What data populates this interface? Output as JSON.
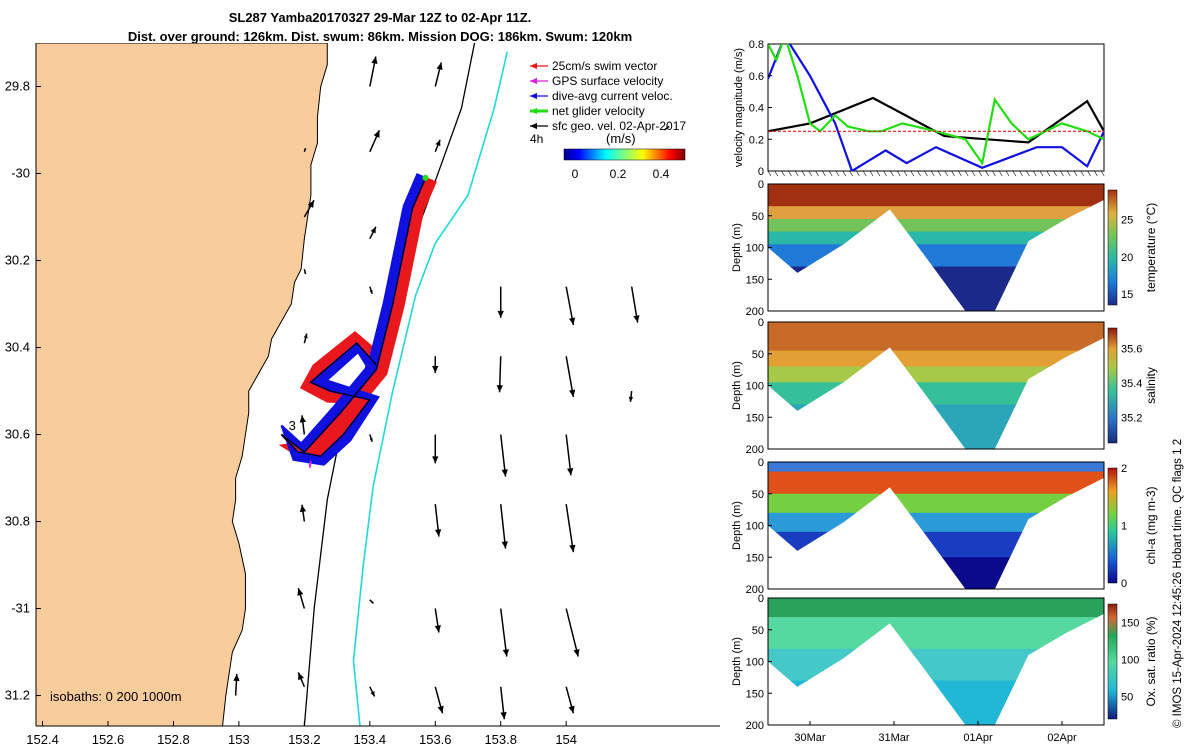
{
  "header": {
    "line1": "SL287 Yamba20170327 29-Mar 12Z to 02-Apr 11Z.",
    "line2": "Dist. over ground: 126km. Dist. swum: 86km. Mission DOG: 186km. Swum: 120km"
  },
  "credit": "© IMOS 15-Apr-2024 12:45:26 Hobart time. QC flags 1  2",
  "colors": {
    "land": "#f9cc9c",
    "swim_vector": "#e8181c",
    "gps_velocity": "#d81ed8",
    "dive_avg": "#1010e0",
    "net_velocity": "#22dd11",
    "sfc_geo": "#000000",
    "isobath_200": "#000000",
    "isobath_1000": "#22d8d8"
  },
  "chart_data": [
    {
      "type": "scatter",
      "name": "map",
      "xlim": [
        152.38,
        154.47
      ],
      "ylim": [
        -31.27,
        -29.7
      ],
      "x_ticks": [
        152.4,
        152.6,
        152.8,
        153,
        153.2,
        153.4,
        153.6,
        153.8,
        154
      ],
      "y_ticks": [
        -29.8,
        -30,
        -30.2,
        -30.4,
        -30.6,
        -30.8,
        -31,
        -31.2
      ],
      "y_tick_labels": [
        "29.8",
        "-30",
        "30.2",
        "30.4",
        "30.6",
        "30.8",
        "-31",
        "31.2"
      ],
      "legend": {
        "placement": "top-right",
        "entries": [
          "25cm/s swim vector",
          "GPS surface velocity",
          "dive-avg current veloc.",
          "net glider velocity",
          "sfc geo. vel. 02-Apr-2017"
        ],
        "time_label": "4h",
        "colorbar_title": "(m/s)",
        "colorbar_ticks": [
          "0",
          "0.2",
          "0.4"
        ]
      },
      "isobaths_label": "isobaths: 0   200  1000m",
      "waypoint_label": "3",
      "coastline": [
        [
          152.38,
          -29.7
        ],
        [
          153.27,
          -29.7
        ],
        [
          153.27,
          -29.75
        ],
        [
          153.25,
          -29.8
        ],
        [
          153.24,
          -29.87
        ],
        [
          153.24,
          -29.93
        ],
        [
          153.22,
          -29.98
        ],
        [
          153.22,
          -30.05
        ],
        [
          153.21,
          -30.1
        ],
        [
          153.2,
          -30.15
        ],
        [
          153.19,
          -30.22
        ],
        [
          153.17,
          -30.25
        ],
        [
          153.16,
          -30.3
        ],
        [
          153.13,
          -30.34
        ],
        [
          153.1,
          -30.38
        ],
        [
          153.09,
          -30.42
        ],
        [
          153.06,
          -30.46
        ],
        [
          153.03,
          -30.5
        ],
        [
          153.03,
          -30.55
        ],
        [
          153.02,
          -30.6
        ],
        [
          153.01,
          -30.65
        ],
        [
          152.99,
          -30.7
        ],
        [
          152.99,
          -30.75
        ],
        [
          152.98,
          -30.8
        ],
        [
          153,
          -30.85
        ],
        [
          153.02,
          -30.92
        ],
        [
          153.02,
          -31
        ],
        [
          153.01,
          -31.05
        ],
        [
          152.98,
          -31.1
        ],
        [
          152.97,
          -31.15
        ],
        [
          152.96,
          -31.2
        ],
        [
          152.95,
          -31.27
        ],
        [
          152.38,
          -31.27
        ]
      ],
      "isobath_200": [
        [
          153.2,
          -31.27
        ],
        [
          153.23,
          -31.0
        ],
        [
          153.27,
          -30.75
        ],
        [
          153.31,
          -30.6
        ],
        [
          153.36,
          -30.5
        ],
        [
          153.46,
          -30.3
        ],
        [
          153.57,
          -30.08
        ],
        [
          153.68,
          -29.85
        ],
        [
          153.72,
          -29.7
        ]
      ],
      "isobath_1000": [
        [
          153.37,
          -31.27
        ],
        [
          153.35,
          -31.12
        ],
        [
          153.38,
          -30.9
        ],
        [
          153.41,
          -30.72
        ],
        [
          153.47,
          -30.5
        ],
        [
          153.54,
          -30.28
        ],
        [
          153.6,
          -30.16
        ],
        [
          153.7,
          -30.05
        ],
        [
          153.78,
          -29.85
        ],
        [
          153.82,
          -29.72
        ]
      ],
      "sfc_vectors": [
        {
          "lon": 153.4,
          "lat": -29.8,
          "u": 0.05,
          "v": 0.25
        },
        {
          "lon": 153.6,
          "lat": -29.8,
          "u": 0.05,
          "v": 0.2
        },
        {
          "lon": 154.3,
          "lat": -29.9,
          "u": 0.04,
          "v": 0.03
        },
        {
          "lon": 153.2,
          "lat": -29.95,
          "u": 0.01,
          "v": 0.03
        },
        {
          "lon": 153.4,
          "lat": -29.95,
          "u": 0.08,
          "v": 0.18
        },
        {
          "lon": 153.6,
          "lat": -29.95,
          "u": 0.04,
          "v": 0.1
        },
        {
          "lon": 153.2,
          "lat": -30.1,
          "u": 0.08,
          "v": 0.14
        },
        {
          "lon": 153.4,
          "lat": -30.15,
          "u": 0.05,
          "v": 0.1
        },
        {
          "lon": 153.2,
          "lat": -30.22,
          "u": 0.01,
          "v": -0.04
        },
        {
          "lon": 153.4,
          "lat": -30.26,
          "u": 0.02,
          "v": -0.06
        },
        {
          "lon": 153.8,
          "lat": -30.26,
          "u": 0.0,
          "v": -0.26
        },
        {
          "lon": 154.0,
          "lat": -30.26,
          "u": 0.06,
          "v": -0.32
        },
        {
          "lon": 154.2,
          "lat": -30.26,
          "u": 0.05,
          "v": -0.3
        },
        {
          "lon": 153.2,
          "lat": -30.39,
          "u": 0.02,
          "v": 0.08
        },
        {
          "lon": 153.6,
          "lat": -30.42,
          "u": 0.0,
          "v": -0.14
        },
        {
          "lon": 153.8,
          "lat": -30.42,
          "u": -0.01,
          "v": -0.3
        },
        {
          "lon": 154.0,
          "lat": -30.42,
          "u": 0.06,
          "v": -0.34
        },
        {
          "lon": 154.2,
          "lat": -30.5,
          "u": -0.01,
          "v": -0.09
        },
        {
          "lon": 153.2,
          "lat": -30.6,
          "u": -0.02,
          "v": 0.16
        },
        {
          "lon": 153.4,
          "lat": -30.6,
          "u": 0.02,
          "v": -0.06
        },
        {
          "lon": 153.6,
          "lat": -30.6,
          "u": 0.0,
          "v": -0.24
        },
        {
          "lon": 153.8,
          "lat": -30.6,
          "u": 0.04,
          "v": -0.35
        },
        {
          "lon": 154.0,
          "lat": -30.6,
          "u": 0.04,
          "v": -0.34
        },
        {
          "lon": 153.2,
          "lat": -30.8,
          "u": -0.02,
          "v": 0.14
        },
        {
          "lon": 153.6,
          "lat": -30.76,
          "u": 0.03,
          "v": -0.27
        },
        {
          "lon": 153.8,
          "lat": -30.76,
          "u": 0.04,
          "v": -0.37
        },
        {
          "lon": 154.0,
          "lat": -30.76,
          "u": 0.06,
          "v": -0.4
        },
        {
          "lon": 153.2,
          "lat": -31.0,
          "u": -0.05,
          "v": 0.17
        },
        {
          "lon": 153.4,
          "lat": -30.98,
          "u": 0.03,
          "v": -0.03
        },
        {
          "lon": 153.6,
          "lat": -31.0,
          "u": 0.03,
          "v": -0.2
        },
        {
          "lon": 153.8,
          "lat": -31.0,
          "u": 0.05,
          "v": -0.4
        },
        {
          "lon": 154.0,
          "lat": -31.0,
          "u": 0.1,
          "v": -0.4
        },
        {
          "lon": 152.99,
          "lat": -31.2,
          "u": 0.01,
          "v": 0.18
        },
        {
          "lon": 153.2,
          "lat": -31.18,
          "u": -0.05,
          "v": 0.12
        },
        {
          "lon": 153.4,
          "lat": -31.18,
          "u": 0.04,
          "v": -0.08
        },
        {
          "lon": 153.6,
          "lat": -31.18,
          "u": 0.06,
          "v": -0.22
        },
        {
          "lon": 153.8,
          "lat": -31.18,
          "u": 0.03,
          "v": -0.27
        },
        {
          "lon": 154.0,
          "lat": -31.18,
          "u": 0.06,
          "v": -0.22
        }
      ],
      "track": [
        [
          153.42,
          -30.44
        ],
        [
          153.36,
          -30.39
        ],
        [
          153.25,
          -30.46
        ],
        [
          153.22,
          -30.48
        ],
        [
          153.28,
          -30.5
        ],
        [
          153.4,
          -30.52
        ],
        [
          153.32,
          -30.6
        ],
        [
          153.25,
          -30.65
        ],
        [
          153.18,
          -30.64
        ],
        [
          153.13,
          -30.6
        ],
        [
          153.2,
          -30.64
        ],
        [
          153.31,
          -30.55
        ],
        [
          153.42,
          -30.45
        ],
        [
          153.47,
          -30.3
        ],
        [
          153.53,
          -30.08
        ],
        [
          153.57,
          -30.01
        ]
      ],
      "gps_arrow": {
        "lon": 153.22,
        "lat": -30.66,
        "u": -0.01,
        "v": -0.06
      }
    },
    {
      "type": "line",
      "name": "velocity",
      "ylabel": "velocity magnitude (m/s)",
      "ylim": [
        0,
        0.8
      ],
      "y_ticks": [
        0,
        0.2,
        0.4,
        0.6,
        0.8
      ],
      "xlim": [
        0,
        4
      ],
      "series": [
        {
          "color": "#000000",
          "x": [
            0,
            0.5,
            1.25,
            2.1,
            3.1,
            3.8,
            4.0
          ],
          "values": [
            0.25,
            0.3,
            0.46,
            0.22,
            0.18,
            0.44,
            0.25
          ]
        },
        {
          "color": "#1010e0",
          "x": [
            0,
            0.2,
            0.5,
            0.68,
            0.8,
            1.0,
            1.4,
            1.65,
            2.0,
            2.55,
            2.85,
            3.2,
            3.5,
            3.8,
            4.0
          ],
          "values": [
            0.58,
            0.85,
            0.6,
            0.42,
            0.3,
            0.0,
            0.13,
            0.05,
            0.15,
            0.02,
            0.08,
            0.15,
            0.15,
            0.03,
            0.25
          ]
        },
        {
          "color": "#22dd11",
          "x": [
            0,
            0.1,
            0.2,
            0.35,
            0.5,
            0.62,
            0.8,
            0.95,
            1.2,
            1.35,
            1.6,
            2.0,
            2.35,
            2.55,
            2.7,
            2.9,
            3.1,
            3.5,
            3.8,
            4.0
          ],
          "values": [
            0.8,
            0.7,
            0.85,
            0.6,
            0.3,
            0.25,
            0.35,
            0.28,
            0.25,
            0.25,
            0.3,
            0.25,
            0.2,
            0.05,
            0.45,
            0.3,
            0.2,
            0.3,
            0.25,
            0.2
          ]
        },
        {
          "color": "#e8181c",
          "x": [
            0,
            4.0
          ],
          "values": [
            0.25,
            0.25
          ]
        }
      ]
    },
    {
      "type": "heatmap",
      "name": "temperature",
      "colorbar_label": "temperature (°C)",
      "colorbar_ticks": [
        15,
        20,
        25
      ],
      "clim": [
        13.5,
        29
      ],
      "ylabel": "Depth (m)",
      "ylim": [
        200,
        0
      ],
      "y_ticks": [
        0,
        50,
        100,
        150,
        200
      ],
      "x_ticks": [
        "30Mar",
        "31Mar",
        "01Apr",
        "02Apr"
      ]
    },
    {
      "type": "heatmap",
      "name": "salinity",
      "colorbar_label": "salinity",
      "colorbar_ticks": [
        35.2,
        35.4,
        35.6
      ],
      "clim": [
        35.05,
        35.72
      ],
      "ylabel": "Depth (m)",
      "ylim": [
        200,
        0
      ],
      "y_ticks": [
        0,
        50,
        100,
        150,
        200
      ]
    },
    {
      "type": "heatmap",
      "name": "chlorophyll",
      "colorbar_label": "chl-a (mg m-3)",
      "colorbar_ticks": [
        0,
        1,
        2
      ],
      "clim": [
        0,
        2
      ],
      "ylabel": "Depth (m)",
      "ylim": [
        200,
        0
      ],
      "y_ticks": [
        0,
        50,
        100,
        150,
        200
      ]
    },
    {
      "type": "heatmap",
      "name": "oxygen",
      "colorbar_label": "Ox. sat. ratio (%)",
      "colorbar_ticks": [
        50,
        100,
        150
      ],
      "clim": [
        20,
        175
      ],
      "ylabel": "Depth (m)",
      "ylim": [
        200,
        0
      ],
      "y_ticks": [
        0,
        50,
        100,
        150,
        200
      ],
      "x_ticks": [
        "30Mar",
        "31Mar",
        "01Apr",
        "02Apr"
      ]
    }
  ],
  "section_profile": {
    "x": [
      0,
      0.35,
      0.9,
      1.45,
      1.85,
      2.35,
      2.7,
      3.1,
      3.55,
      4.0
    ],
    "bottom_depth": [
      100,
      140,
      95,
      40,
      110,
      200,
      200,
      90,
      55,
      25
    ]
  }
}
